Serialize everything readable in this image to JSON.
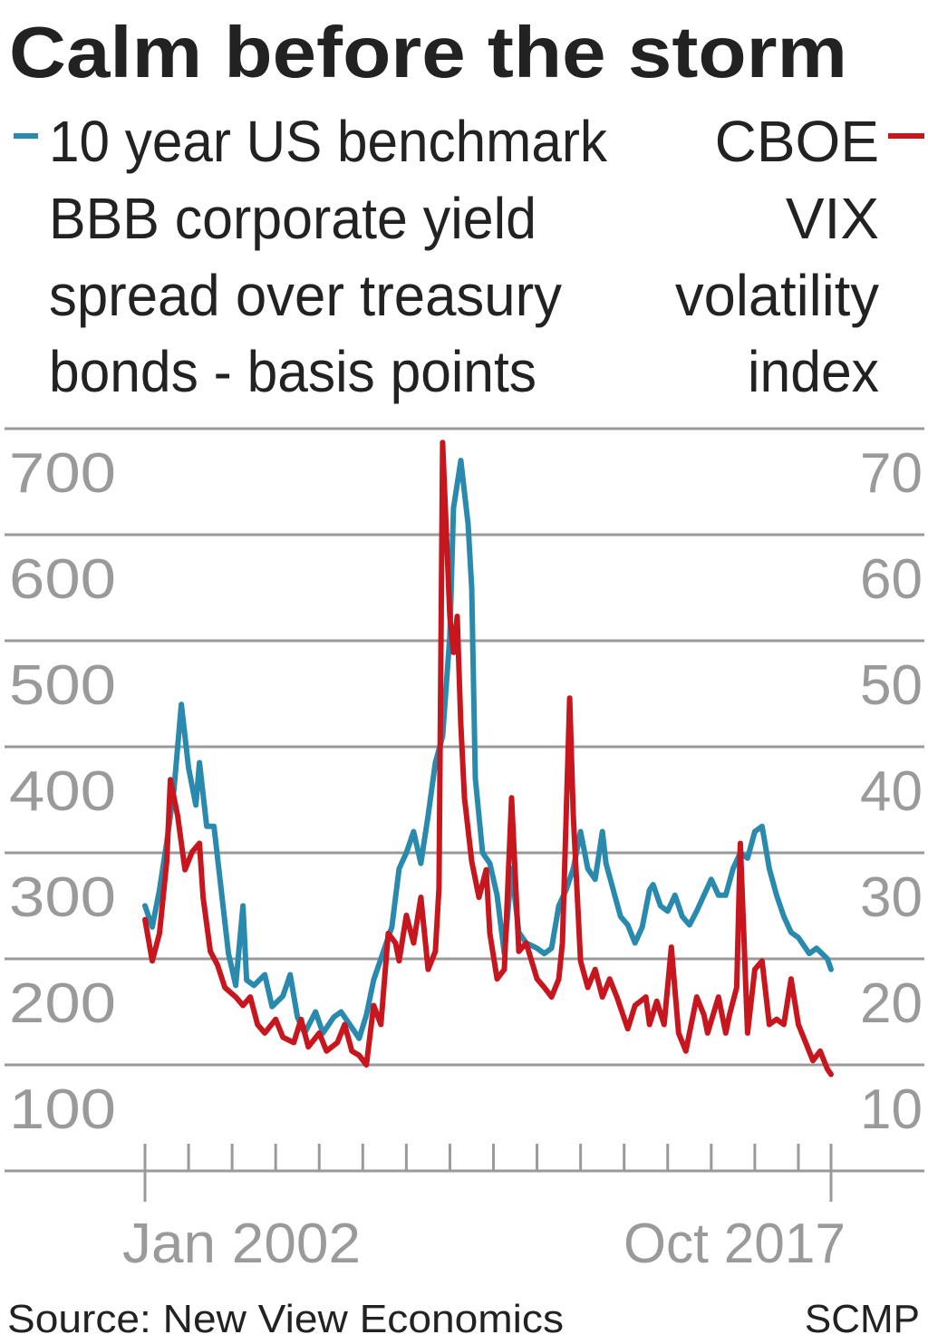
{
  "chart_data": {
    "type": "line",
    "title": "Calm before the storm",
    "legend_placement": "top",
    "grid": true,
    "left_axis": {
      "ticks": [
        "100",
        "200",
        "300",
        "400",
        "500",
        "600",
        "700"
      ],
      "ylim": [
        0,
        700
      ]
    },
    "right_axis": {
      "ticks": [
        "10",
        "20",
        "30",
        "40",
        "50",
        "60",
        "70"
      ],
      "ylim": [
        0,
        70
      ]
    },
    "x_axis": {
      "labels": [
        "Jan 2002",
        "Oct 2017"
      ],
      "range": [
        "2002-01",
        "2017-10"
      ],
      "tick_interval": "1 year"
    },
    "legend": {
      "left": [
        "10 year US benchmark",
        "BBB corporate yield",
        "spread over treasury",
        "bonds - basis points"
      ],
      "right": [
        "CBOE",
        "VIX",
        "volatility",
        "index"
      ]
    },
    "series": [
      {
        "name": "10 year US benchmark BBB corporate yield spread over treasury bonds - basis points",
        "axis": "left",
        "color": "#2a8aad",
        "points": [
          [
            "2002-01",
            250
          ],
          [
            "2002-03",
            230
          ],
          [
            "2002-05",
            265
          ],
          [
            "2002-07",
            310
          ],
          [
            "2002-09",
            360
          ],
          [
            "2002-11",
            440
          ],
          [
            "2003-01",
            380
          ],
          [
            "2003-03",
            345
          ],
          [
            "2003-04",
            385
          ],
          [
            "2003-06",
            325
          ],
          [
            "2003-08",
            325
          ],
          [
            "2003-10",
            265
          ],
          [
            "2003-12",
            205
          ],
          [
            "2004-02",
            175
          ],
          [
            "2004-04",
            250
          ],
          [
            "2004-05",
            180
          ],
          [
            "2004-07",
            175
          ],
          [
            "2004-10",
            185
          ],
          [
            "2004-12",
            155
          ],
          [
            "2005-03",
            165
          ],
          [
            "2005-05",
            185
          ],
          [
            "2005-07",
            145
          ],
          [
            "2005-09",
            130
          ],
          [
            "2005-12",
            150
          ],
          [
            "2006-02",
            130
          ],
          [
            "2006-05",
            145
          ],
          [
            "2006-07",
            150
          ],
          [
            "2006-10",
            135
          ],
          [
            "2006-12",
            125
          ],
          [
            "2007-02",
            147
          ],
          [
            "2007-04",
            180
          ],
          [
            "2007-06",
            200
          ],
          [
            "2007-09",
            230
          ],
          [
            "2007-11",
            285
          ],
          [
            "2008-01",
            300
          ],
          [
            "2008-03",
            320
          ],
          [
            "2008-05",
            290
          ],
          [
            "2008-07",
            335
          ],
          [
            "2008-09",
            385
          ],
          [
            "2008-11",
            410
          ],
          [
            "2009-01",
            505
          ],
          [
            "2009-02",
            625
          ],
          [
            "2009-04",
            670
          ],
          [
            "2009-06",
            610
          ],
          [
            "2009-07",
            550
          ],
          [
            "2009-08",
            370
          ],
          [
            "2009-10",
            300
          ],
          [
            "2009-12",
            290
          ],
          [
            "2010-02",
            260
          ],
          [
            "2010-04",
            205
          ],
          [
            "2010-06",
            285
          ],
          [
            "2010-08",
            225
          ],
          [
            "2010-10",
            215
          ],
          [
            "2011-01",
            210
          ],
          [
            "2011-03",
            205
          ],
          [
            "2011-05",
            210
          ],
          [
            "2011-07",
            250
          ],
          [
            "2011-09",
            265
          ],
          [
            "2011-11",
            285
          ],
          [
            "2012-01",
            320
          ],
          [
            "2012-03",
            285
          ],
          [
            "2012-05",
            275
          ],
          [
            "2012-07",
            320
          ],
          [
            "2012-08",
            290
          ],
          [
            "2012-10",
            265
          ],
          [
            "2012-12",
            240
          ],
          [
            "2013-02",
            232
          ],
          [
            "2013-04",
            215
          ],
          [
            "2013-06",
            230
          ],
          [
            "2013-08",
            265
          ],
          [
            "2013-09",
            270
          ],
          [
            "2013-11",
            250
          ],
          [
            "2014-01",
            245
          ],
          [
            "2014-03",
            260
          ],
          [
            "2014-05",
            240
          ],
          [
            "2014-07",
            232
          ],
          [
            "2014-09",
            245
          ],
          [
            "2014-11",
            260
          ],
          [
            "2015-01",
            275
          ],
          [
            "2015-03",
            260
          ],
          [
            "2015-05",
            260
          ],
          [
            "2015-07",
            285
          ],
          [
            "2015-09",
            300
          ],
          [
            "2015-11",
            295
          ],
          [
            "2016-01",
            320
          ],
          [
            "2016-03",
            325
          ],
          [
            "2016-05",
            285
          ],
          [
            "2016-07",
            260
          ],
          [
            "2016-09",
            240
          ],
          [
            "2016-11",
            225
          ],
          [
            "2017-01",
            220
          ],
          [
            "2017-04",
            205
          ],
          [
            "2017-06",
            210
          ],
          [
            "2017-09",
            200
          ],
          [
            "2017-10",
            190
          ]
        ]
      },
      {
        "name": "CBOE VIX volatility index",
        "axis": "right",
        "color": "#c8161e",
        "points": [
          [
            "2002-01",
            23.7
          ],
          [
            "2002-03",
            19.8
          ],
          [
            "2002-05",
            22.4
          ],
          [
            "2002-07",
            29.2
          ],
          [
            "2002-08",
            36.9
          ],
          [
            "2002-10",
            33.5
          ],
          [
            "2002-12",
            28.4
          ],
          [
            "2003-02",
            30.1
          ],
          [
            "2003-04",
            30.9
          ],
          [
            "2003-05",
            25.8
          ],
          [
            "2003-07",
            20.7
          ],
          [
            "2003-09",
            19.4
          ],
          [
            "2003-11",
            17.3
          ],
          [
            "2004-02",
            16.4
          ],
          [
            "2004-04",
            15.6
          ],
          [
            "2004-06",
            16.4
          ],
          [
            "2004-08",
            13.8
          ],
          [
            "2004-10",
            13.0
          ],
          [
            "2005-01",
            14.3
          ],
          [
            "2005-03",
            12.6
          ],
          [
            "2005-06",
            12.1
          ],
          [
            "2005-08",
            14.3
          ],
          [
            "2005-10",
            11.7
          ],
          [
            "2006-01",
            13.0
          ],
          [
            "2006-03",
            11.3
          ],
          [
            "2006-06",
            12.1
          ],
          [
            "2006-08",
            13.8
          ],
          [
            "2006-10",
            11.3
          ],
          [
            "2006-12",
            10.9
          ],
          [
            "2007-02",
            10.0
          ],
          [
            "2007-04",
            15.6
          ],
          [
            "2007-06",
            13.8
          ],
          [
            "2007-08",
            22.4
          ],
          [
            "2007-10",
            21.5
          ],
          [
            "2007-11",
            19.8
          ],
          [
            "2008-01",
            24.1
          ],
          [
            "2008-03",
            21.5
          ],
          [
            "2008-05",
            25.8
          ],
          [
            "2008-07",
            19.0
          ],
          [
            "2008-09",
            20.7
          ],
          [
            "2008-10",
            26.7
          ],
          [
            "2008-11",
            68.7
          ],
          [
            "2009-01",
            52.3
          ],
          [
            "2009-02",
            48.9
          ],
          [
            "2009-03",
            52.3
          ],
          [
            "2009-04",
            42.1
          ],
          [
            "2009-05",
            35.2
          ],
          [
            "2009-07",
            29.2
          ],
          [
            "2009-09",
            25.8
          ],
          [
            "2009-11",
            28.4
          ],
          [
            "2009-12",
            22.4
          ],
          [
            "2010-02",
            18.1
          ],
          [
            "2010-04",
            19.0
          ],
          [
            "2010-06",
            35.2
          ],
          [
            "2010-08",
            20.7
          ],
          [
            "2010-10",
            21.5
          ],
          [
            "2011-01",
            18.1
          ],
          [
            "2011-03",
            17.3
          ],
          [
            "2011-05",
            16.4
          ],
          [
            "2011-07",
            18.1
          ],
          [
            "2011-08",
            21.5
          ],
          [
            "2011-10",
            44.6
          ],
          [
            "2011-11",
            33.5
          ],
          [
            "2012-01",
            19.8
          ],
          [
            "2012-03",
            17.3
          ],
          [
            "2012-05",
            19.0
          ],
          [
            "2012-07",
            16.4
          ],
          [
            "2012-09",
            18.1
          ],
          [
            "2012-11",
            16.4
          ],
          [
            "2013-02",
            13.4
          ],
          [
            "2013-04",
            15.6
          ],
          [
            "2013-07",
            16.4
          ],
          [
            "2013-08",
            13.8
          ],
          [
            "2013-10",
            16.0
          ],
          [
            "2013-12",
            13.8
          ],
          [
            "2014-02",
            21.1
          ],
          [
            "2014-04",
            13.0
          ],
          [
            "2014-06",
            11.3
          ],
          [
            "2014-09",
            16.4
          ],
          [
            "2014-11",
            14.7
          ],
          [
            "2014-12",
            13.0
          ],
          [
            "2015-03",
            16.4
          ],
          [
            "2015-05",
            13.0
          ],
          [
            "2015-06",
            14.7
          ],
          [
            "2015-08",
            17.3
          ],
          [
            "2015-09",
            30.9
          ],
          [
            "2015-11",
            13.0
          ],
          [
            "2016-01",
            19.0
          ],
          [
            "2016-03",
            19.8
          ],
          [
            "2016-05",
            13.8
          ],
          [
            "2016-07",
            14.3
          ],
          [
            "2016-09",
            13.8
          ],
          [
            "2016-11",
            18.1
          ],
          [
            "2017-01",
            13.8
          ],
          [
            "2017-03",
            12.1
          ],
          [
            "2017-05",
            10.4
          ],
          [
            "2017-07",
            11.3
          ],
          [
            "2017-09",
            9.6
          ],
          [
            "2017-10",
            9.1
          ]
        ]
      }
    ],
    "source": "Source: New View Economics",
    "credit": "SCMP"
  }
}
